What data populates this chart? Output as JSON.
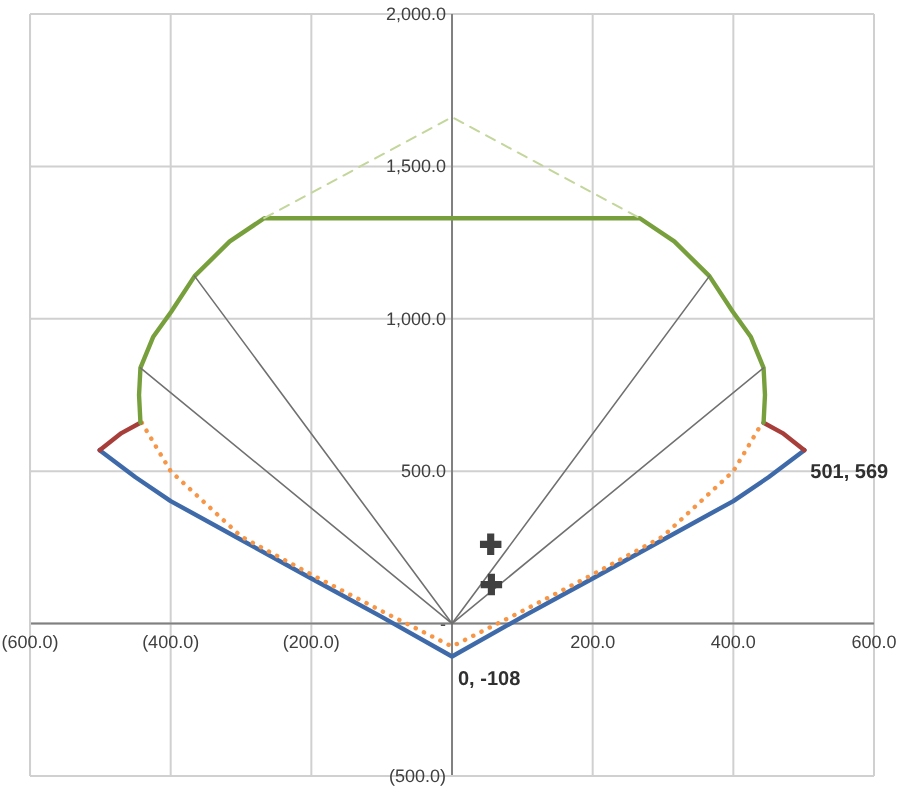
{
  "chart_data": {
    "type": "line",
    "xlim": [
      -600,
      600
    ],
    "ylim": [
      -500,
      2000
    ],
    "xticks": [
      {
        "value": -600,
        "label": "(600.0)"
      },
      {
        "value": -400,
        "label": "(400.0)"
      },
      {
        "value": -200,
        "label": "(200.0)"
      },
      {
        "value": 0,
        "label": null
      },
      {
        "value": 200,
        "label": "200.0"
      },
      {
        "value": 400,
        "label": "400.0"
      },
      {
        "value": 600,
        "label": "600.0"
      }
    ],
    "yticks": [
      {
        "value": -500,
        "label": "(500.0)"
      },
      {
        "value": 0,
        "label": "-"
      },
      {
        "value": 500,
        "label": "500.0"
      },
      {
        "value": 1000,
        "label": "1,000.0"
      },
      {
        "value": 1500,
        "label": "1,500.0"
      },
      {
        "value": 2000,
        "label": "2,000.0"
      }
    ],
    "grid": true,
    "marker": "none",
    "line_style": "solid",
    "series": [
      {
        "color": "#3f6aaa",
        "x": [
          -501,
          -450,
          -400,
          -300,
          -200,
          -100,
          0,
          100,
          200,
          300,
          400,
          450,
          501
        ],
        "values": [
          569,
          480,
          402,
          275,
          148,
          22,
          -108,
          22,
          148,
          275,
          402,
          480,
          569
        ]
      },
      {
        "color": "#f79646",
        "line_style": "dotted",
        "x": [
          -441,
          -420,
          -400,
          -300,
          -200,
          -100,
          0,
          100,
          200,
          300,
          400,
          420,
          441
        ],
        "values": [
          659,
          577,
          500,
          286,
          161,
          41,
          -75,
          41,
          161,
          286,
          500,
          577,
          659
        ]
      },
      {
        "color": "#a83e3a",
        "x": [
          -501,
          -470,
          -443
        ],
        "values": [
          569,
          625,
          659
        ]
      },
      {
        "color": "#a83e3a",
        "x": [
          443,
          470,
          501
        ],
        "values": [
          659,
          625,
          569
        ]
      },
      {
        "color": "#77a03c",
        "x": [
          -443,
          -445,
          -443,
          -425,
          -399,
          -366,
          -316,
          -267,
          267,
          316,
          366,
          399,
          425,
          443,
          445,
          443
        ],
        "values": [
          659,
          750,
          839,
          940,
          1024,
          1140,
          1254,
          1330,
          1330,
          1254,
          1140,
          1024,
          940,
          839,
          750,
          659
        ]
      },
      {
        "color": "#c3d69b",
        "line_style": "dashed",
        "x": [
          -267,
          0,
          267
        ],
        "values": [
          1330,
          1662,
          1330
        ]
      },
      {
        "color": "#707070",
        "x": [
          0,
          -443
        ],
        "values": [
          0,
          839
        ]
      },
      {
        "color": "#707070",
        "x": [
          0,
          -366
        ],
        "values": [
          0,
          1140
        ]
      },
      {
        "color": "#707070",
        "x": [
          0,
          366
        ],
        "values": [
          0,
          1140
        ]
      },
      {
        "color": "#707070",
        "x": [
          0,
          443
        ],
        "values": [
          0,
          839
        ]
      },
      {
        "type": "scatter",
        "marker": "cross",
        "color": "#404040",
        "x": [
          55,
          56
        ],
        "values": [
          260,
          128
        ]
      }
    ],
    "annotations": [
      {
        "text": "501, 569",
        "x": 501,
        "y": 569
      },
      {
        "text": "0, -108",
        "x": 0,
        "y": -108
      }
    ]
  }
}
